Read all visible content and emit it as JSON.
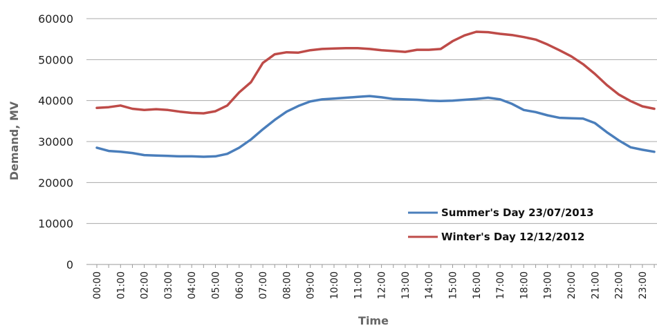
{
  "chart_data": {
    "type": "line",
    "title": "",
    "xlabel": "Time",
    "ylabel": "Demand, MV",
    "ylim": [
      0,
      60000
    ],
    "yticks": [
      0,
      10000,
      20000,
      30000,
      40000,
      50000,
      60000
    ],
    "categories": [
      "00:00",
      "01:00",
      "02:00",
      "03:00",
      "04:00",
      "05:00",
      "06:00",
      "07:00",
      "08:00",
      "09:00",
      "10:00",
      "11:00",
      "12:00",
      "13:00",
      "14:00",
      "15:00",
      "16:00",
      "17:00",
      "18:00",
      "19:00",
      "20:00",
      "21:00",
      "22:00",
      "23:00"
    ],
    "grid": true,
    "legend_position": "bottom-right",
    "x": [
      0,
      0.5,
      1,
      1.5,
      2,
      2.5,
      3,
      3.5,
      4,
      4.5,
      5,
      5.5,
      6,
      6.5,
      7,
      7.5,
      8,
      8.5,
      9,
      9.5,
      10,
      10.5,
      11,
      11.5,
      12,
      12.5,
      13,
      13.5,
      14,
      14.5,
      15,
      15.5,
      16,
      16.5,
      17,
      17.5,
      18,
      18.5,
      19,
      19.5,
      20,
      20.5,
      21,
      21.5,
      22,
      22.5,
      23,
      23.5
    ],
    "series": [
      {
        "name": "Summer's Day 23/07/2013",
        "color": "#4a7ebb",
        "values": [
          28500,
          27700,
          27500,
          27200,
          26700,
          26600,
          26500,
          26400,
          26400,
          26300,
          26400,
          27000,
          28500,
          30500,
          33000,
          35300,
          37300,
          38700,
          39800,
          40300,
          40500,
          40700,
          40900,
          41100,
          40800,
          40400,
          40300,
          40200,
          40000,
          39900,
          40000,
          40200,
          40400,
          40700,
          40300,
          39200,
          37700,
          37200,
          36400,
          35800,
          35700,
          35600,
          34500,
          32300,
          30300,
          28600,
          28000,
          27500
        ]
      },
      {
        "name": "Winter's Day 12/12/2012",
        "color": "#be4b48",
        "values": [
          38200,
          38400,
          38800,
          38000,
          37700,
          37900,
          37700,
          37300,
          37000,
          36900,
          37400,
          38800,
          42000,
          44500,
          49200,
          51300,
          51800,
          51700,
          52300,
          52600,
          52700,
          52800,
          52800,
          52600,
          52300,
          52100,
          51900,
          52400,
          52400,
          52600,
          54500,
          55900,
          56800,
          56700,
          56300,
          56000,
          55500,
          54900,
          53700,
          52300,
          50800,
          48900,
          46500,
          43800,
          41500,
          39900,
          38600,
          38000
        ]
      }
    ]
  }
}
